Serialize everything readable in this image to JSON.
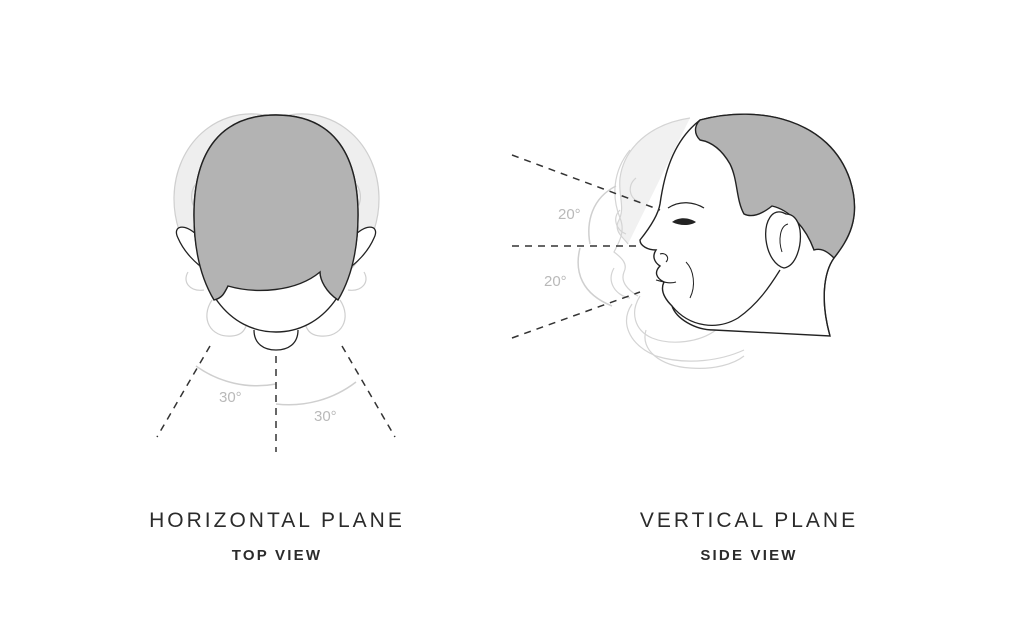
{
  "diagrams": [
    {
      "title": "HORIZONTAL PLANE",
      "subtitle": "TOP VIEW",
      "angles": [
        {
          "label": "30°",
          "value": 30
        },
        {
          "label": "30°",
          "value": 30
        }
      ]
    },
    {
      "title": "VERTICAL PLANE",
      "subtitle": "SIDE VIEW",
      "angles": [
        {
          "label": "20°",
          "value": 20
        },
        {
          "label": "20°",
          "value": 20
        }
      ]
    }
  ],
  "colors": {
    "hair": "#b3b3b3",
    "outline": "#222222",
    "ghost": "#cfcfcf",
    "ghost_fill": "#eeeeee",
    "angle_label": "#b9b9b9",
    "text": "#2b2b2b"
  }
}
